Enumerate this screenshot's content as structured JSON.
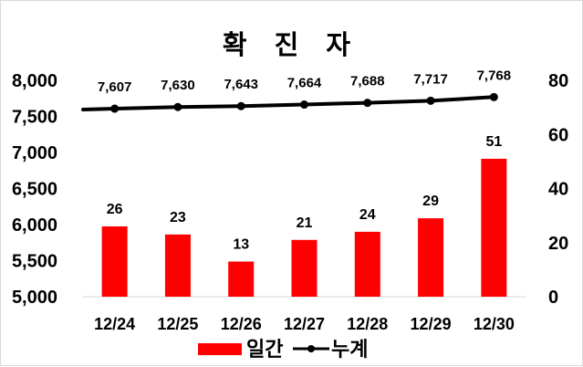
{
  "chart_data": {
    "type": "bar",
    "title": "확 진 자",
    "categories": [
      "12/24",
      "12/25",
      "12/26",
      "12/27",
      "12/28",
      "12/29",
      "12/30"
    ],
    "series": [
      {
        "name": "일간",
        "type": "bar",
        "axis": "right",
        "values": [
          26,
          23,
          13,
          21,
          24,
          29,
          51
        ]
      },
      {
        "name": "누계",
        "type": "line",
        "axis": "left",
        "values": [
          7607,
          7630,
          7643,
          7664,
          7688,
          7717,
          7768
        ]
      }
    ],
    "left_axis": {
      "ylim": [
        5000,
        8000
      ],
      "ticks": [
        "5,000",
        "5,500",
        "6,000",
        "6,500",
        "7,000",
        "7,500",
        "8,000"
      ]
    },
    "right_axis": {
      "ylim": [
        0,
        80
      ],
      "ticks": [
        "0",
        "20",
        "40",
        "60",
        "80"
      ]
    },
    "bar_color": "#ff0000",
    "line_color": "#000000",
    "legend_position": "bottom",
    "grid": false
  }
}
